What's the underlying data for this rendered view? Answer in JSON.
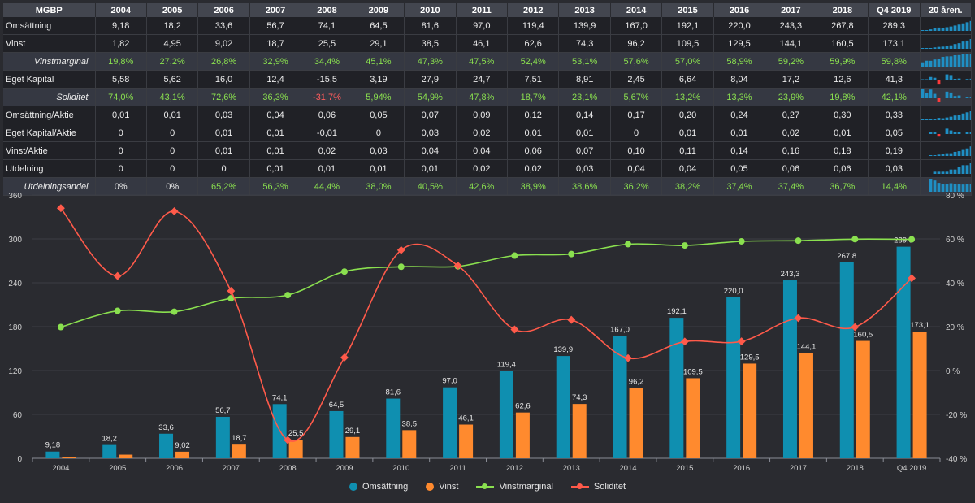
{
  "table": {
    "header_label": "MGBP",
    "columns": [
      "2004",
      "2005",
      "2006",
      "2007",
      "2008",
      "2009",
      "2010",
      "2011",
      "2012",
      "2013",
      "2014",
      "2015",
      "2016",
      "2017",
      "2018",
      "Q4 2019"
    ],
    "spark_header": "20 åren.",
    "rows": [
      {
        "label": "Omsättning",
        "alt": false,
        "values": [
          "9,18",
          "18,2",
          "33,6",
          "56,7",
          "74,1",
          "64,5",
          "81,6",
          "97,0",
          "119,4",
          "139,9",
          "167,0",
          "192,1",
          "220,0",
          "243,3",
          "267,8",
          "289,3"
        ]
      },
      {
        "label": "Vinst",
        "alt": false,
        "values": [
          "1,82",
          "4,95",
          "9,02",
          "18,7",
          "25,5",
          "29,1",
          "38,5",
          "46,1",
          "62,6",
          "74,3",
          "96,2",
          "109,5",
          "129,5",
          "144,1",
          "160,5",
          "173,1"
        ]
      },
      {
        "label": "Vinstmarginal",
        "alt": true,
        "values": [
          "19,8%",
          "27,2%",
          "26,8%",
          "32,9%",
          "34,4%",
          "45,1%",
          "47,3%",
          "47,5%",
          "52,4%",
          "53,1%",
          "57,6%",
          "57,0%",
          "58,9%",
          "59,2%",
          "59,9%",
          "59,8%"
        ]
      },
      {
        "label": "Eget Kapital",
        "alt": false,
        "values": [
          "5,58",
          "5,62",
          "16,0",
          "12,4",
          "-15,5",
          "3,19",
          "27,9",
          "24,7",
          "7,51",
          "8,91",
          "2,45",
          "6,64",
          "8,04",
          "17,2",
          "12,6",
          "41,3"
        ]
      },
      {
        "label": "Soliditet",
        "alt": true,
        "values": [
          "74,0%",
          "43,1%",
          "72,6%",
          "36,3%",
          "-31,7%",
          "5,94%",
          "54,9%",
          "47,8%",
          "18,7%",
          "23,1%",
          "5,67%",
          "13,2%",
          "13,3%",
          "23,9%",
          "19,8%",
          "42,1%"
        ]
      },
      {
        "label": "Omsättning/Aktie",
        "alt": false,
        "values": [
          "0,01",
          "0,01",
          "0,03",
          "0,04",
          "0,06",
          "0,05",
          "0,07",
          "0,09",
          "0,12",
          "0,14",
          "0,17",
          "0,20",
          "0,24",
          "0,27",
          "0,30",
          "0,33"
        ]
      },
      {
        "label": "Eget Kapital/Aktie",
        "alt": false,
        "values": [
          "0",
          "0",
          "0,01",
          "0,01",
          "-0,01",
          "0",
          "0,03",
          "0,02",
          "0,01",
          "0,01",
          "0",
          "0,01",
          "0,01",
          "0,02",
          "0,01",
          "0,05"
        ]
      },
      {
        "label": "Vinst/Aktie",
        "alt": false,
        "values": [
          "0",
          "0",
          "0,01",
          "0,01",
          "0,02",
          "0,03",
          "0,04",
          "0,04",
          "0,06",
          "0,07",
          "0,10",
          "0,11",
          "0,14",
          "0,16",
          "0,18",
          "0,19"
        ]
      },
      {
        "label": "Utdelning",
        "alt": false,
        "values": [
          "0",
          "0",
          "0",
          "0,01",
          "0,01",
          "0,01",
          "0,01",
          "0,02",
          "0,02",
          "0,03",
          "0,04",
          "0,04",
          "0,05",
          "0,06",
          "0,06",
          "0,03"
        ]
      },
      {
        "label": "Utdelningsandel",
        "alt": true,
        "values": [
          "0%",
          "0%",
          "65,2%",
          "56,3%",
          "44,4%",
          "38,0%",
          "40,5%",
          "42,6%",
          "38,9%",
          "38,6%",
          "36,2%",
          "38,2%",
          "37,4%",
          "37,4%",
          "36,7%",
          "14,4%"
        ]
      }
    ]
  },
  "colors": {
    "omsattning": "#0f8fb0",
    "vinst": "#ff8a2e",
    "vinstmarginal": "#8ae04f",
    "soliditet": "#ff5a4a",
    "grid": "#3c3e45",
    "axis_text": "#d0d0d0",
    "spark": "#1f8fc4",
    "spark_neg": "#ff3a3a"
  },
  "chart_data": {
    "type": "bar",
    "categories": [
      "2004",
      "2005",
      "2006",
      "2007",
      "2008",
      "2009",
      "2010",
      "2011",
      "2012",
      "2013",
      "2014",
      "2015",
      "2016",
      "2017",
      "2018",
      "Q4 2019"
    ],
    "series": [
      {
        "name": "Omsättning",
        "kind": "bar",
        "axis": "left",
        "values": [
          9.18,
          18.2,
          33.6,
          56.7,
          74.1,
          64.5,
          81.6,
          97.0,
          119.4,
          139.9,
          167.0,
          192.1,
          220.0,
          243.3,
          267.8,
          289.3
        ],
        "labels": [
          "9,18",
          "18,2",
          "33,6",
          "56,7",
          "74,1",
          "64,5",
          "81,6",
          "97,0",
          "119,4",
          "139,9",
          "167,0",
          "192,1",
          "220,0",
          "243,3",
          "267,8",
          "289,3"
        ]
      },
      {
        "name": "Vinst",
        "kind": "bar",
        "axis": "left",
        "values": [
          1.82,
          4.95,
          9.02,
          18.7,
          25.5,
          29.1,
          38.5,
          46.1,
          62.6,
          74.3,
          96.2,
          109.5,
          129.5,
          144.1,
          160.5,
          173.1
        ],
        "labels": [
          "",
          "",
          "9,02",
          "18,7",
          "25,5",
          "29,1",
          "38,5",
          "46,1",
          "62,6",
          "74,3",
          "96,2",
          "109,5",
          "129,5",
          "144,1",
          "160,5",
          "173,1"
        ]
      },
      {
        "name": "Vinstmarginal",
        "kind": "line",
        "axis": "right",
        "values": [
          19.8,
          27.2,
          26.8,
          32.9,
          34.4,
          45.1,
          47.3,
          47.5,
          52.4,
          53.1,
          57.6,
          57.0,
          58.9,
          59.2,
          59.9,
          59.8
        ]
      },
      {
        "name": "Soliditet",
        "kind": "line",
        "axis": "right",
        "values": [
          74.0,
          43.1,
          72.6,
          36.3,
          -31.7,
          5.94,
          54.9,
          47.8,
          18.7,
          23.1,
          5.67,
          13.2,
          13.3,
          23.9,
          19.8,
          42.1
        ]
      }
    ],
    "ylim": [
      0,
      360
    ],
    "yticks": [
      "0",
      "60",
      "120",
      "180",
      "240",
      "300",
      "360"
    ],
    "y2lim": [
      -40,
      80
    ],
    "y2ticks": [
      "-40 %",
      "-20 %",
      "0 %",
      "20 %",
      "40 %",
      "60 %",
      "80 %"
    ],
    "grid": true,
    "legend_position": "bottom-center"
  }
}
